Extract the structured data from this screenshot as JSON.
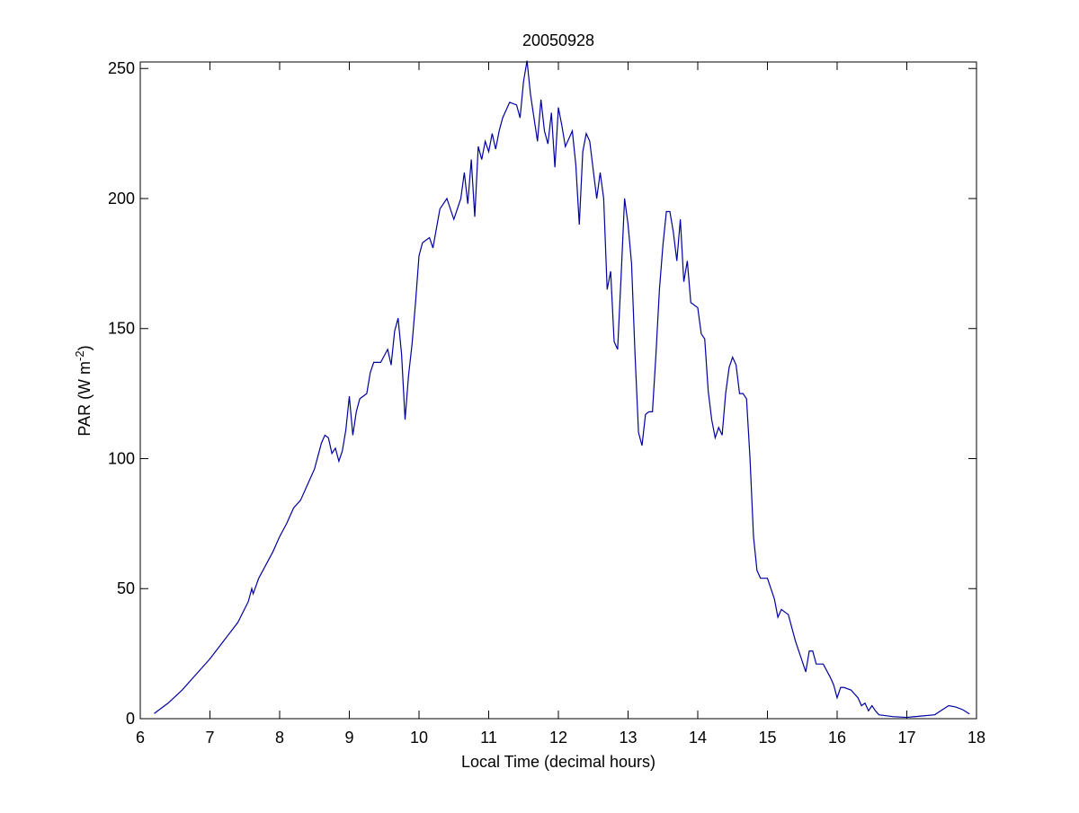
{
  "chart_data": {
    "type": "line",
    "title": "20050928",
    "xlabel": "Local Time (decimal hours)",
    "ylabel_parts": [
      "PAR (W m",
      "-2",
      ")"
    ],
    "xlim": [
      6,
      18
    ],
    "xticks": [
      6,
      7,
      8,
      9,
      10,
      11,
      12,
      13,
      14,
      15,
      16,
      17,
      18
    ],
    "ylim": [
      0,
      252.5
    ],
    "yticks": [
      0,
      50,
      100,
      150,
      200,
      250
    ],
    "grid": false,
    "box": true,
    "series": [
      {
        "color": "#0000a0",
        "x": [
          6.2,
          6.4,
          6.6,
          6.8,
          7.0,
          7.2,
          7.4,
          7.55,
          7.6,
          7.62,
          7.7,
          7.8,
          7.9,
          8.0,
          8.1,
          8.2,
          8.3,
          8.4,
          8.5,
          8.6,
          8.65,
          8.7,
          8.75,
          8.8,
          8.85,
          8.9,
          8.95,
          9.0,
          9.05,
          9.1,
          9.15,
          9.25,
          9.3,
          9.35,
          9.45,
          9.55,
          9.6,
          9.65,
          9.7,
          9.75,
          9.8,
          9.85,
          9.9,
          9.95,
          10.0,
          10.05,
          10.15,
          10.2,
          10.3,
          10.4,
          10.5,
          10.6,
          10.65,
          10.7,
          10.75,
          10.8,
          10.85,
          10.9,
          10.95,
          11.0,
          11.05,
          11.1,
          11.15,
          11.2,
          11.3,
          11.4,
          11.45,
          11.5,
          11.55,
          11.6,
          11.7,
          11.75,
          11.8,
          11.85,
          11.9,
          11.95,
          12.0,
          12.05,
          12.1,
          12.2,
          12.25,
          12.3,
          12.35,
          12.4,
          12.45,
          12.5,
          12.55,
          12.6,
          12.65,
          12.7,
          12.75,
          12.8,
          12.85,
          12.9,
          12.95,
          13.0,
          13.05,
          13.1,
          13.15,
          13.2,
          13.25,
          13.3,
          13.35,
          13.4,
          13.45,
          13.5,
          13.55,
          13.6,
          13.65,
          13.7,
          13.75,
          13.8,
          13.85,
          13.9,
          14.0,
          14.05,
          14.1,
          14.15,
          14.2,
          14.25,
          14.3,
          14.35,
          14.4,
          14.45,
          14.5,
          14.55,
          14.6,
          14.65,
          14.7,
          14.75,
          14.8,
          14.85,
          14.9,
          15.0,
          15.1,
          15.15,
          15.2,
          15.3,
          15.4,
          15.5,
          15.55,
          15.6,
          15.65,
          15.7,
          15.8,
          15.9,
          15.95,
          16.0,
          16.05,
          16.1,
          16.2,
          16.3,
          16.35,
          16.4,
          16.45,
          16.5,
          16.55,
          16.6,
          16.8,
          17.0,
          17.2,
          17.4,
          17.6,
          17.7,
          17.8,
          17.9
        ],
        "values": [
          2,
          6,
          11,
          17,
          23,
          30,
          37,
          45,
          50,
          48,
          54,
          59,
          64,
          70,
          75,
          81,
          84,
          90,
          96,
          106,
          109,
          108,
          102,
          104,
          99,
          103,
          111,
          124,
          109,
          118,
          123,
          125,
          133,
          137,
          137,
          142,
          136,
          149,
          154,
          140,
          115,
          132,
          144,
          160,
          178,
          183,
          185,
          181,
          196,
          200,
          192,
          200,
          210,
          198,
          215,
          193,
          220,
          215,
          222,
          218,
          225,
          219,
          226,
          231,
          237,
          236,
          231,
          245,
          253,
          240,
          222,
          238,
          226,
          221,
          233,
          212,
          235,
          228,
          220,
          226,
          213,
          190,
          218,
          225,
          222,
          211,
          200,
          210,
          200,
          165,
          172,
          145,
          142,
          170,
          200,
          190,
          175,
          140,
          110,
          105,
          117,
          118,
          118,
          140,
          165,
          182,
          195,
          195,
          187,
          176,
          192,
          168,
          176,
          160,
          158,
          148,
          146,
          126,
          115,
          108,
          112,
          109,
          125,
          135,
          139,
          136,
          125,
          125,
          123,
          100,
          70,
          57,
          54,
          54,
          46,
          39,
          42,
          40,
          30,
          22,
          18,
          26,
          26,
          21,
          21,
          16,
          13,
          8,
          12,
          12,
          11,
          8,
          5,
          6,
          3,
          5,
          3,
          1.5,
          0.8,
          0.5,
          1,
          1.5,
          5,
          4.5,
          3.5,
          1.8
        ]
      }
    ]
  }
}
